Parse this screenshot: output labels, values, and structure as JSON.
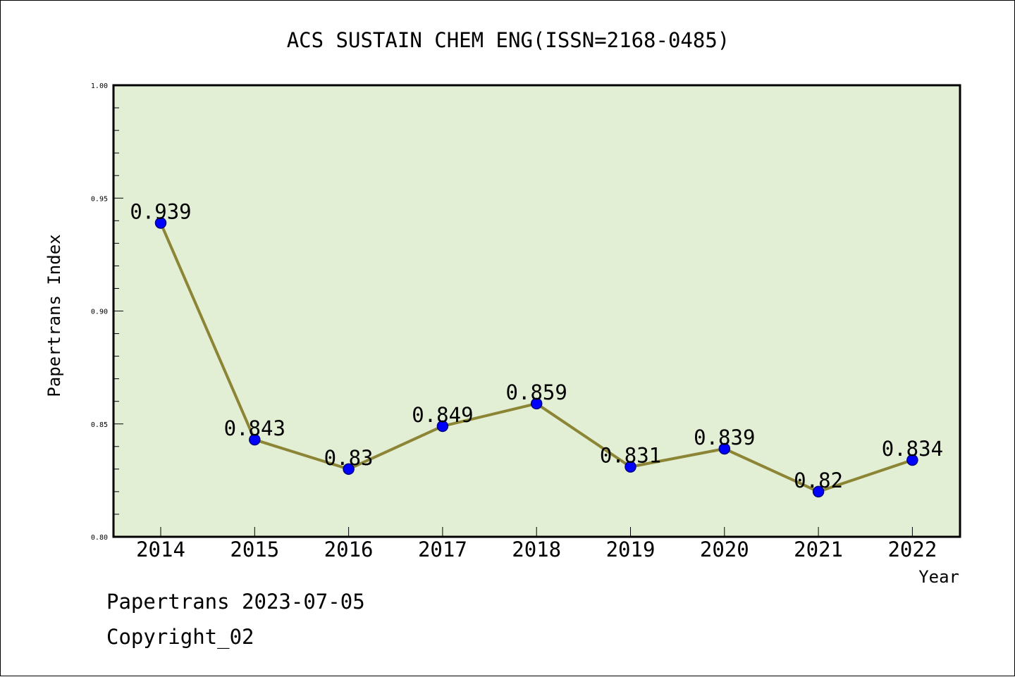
{
  "chart_data": {
    "type": "line",
    "title": "ACS SUSTAIN CHEM ENG(ISSN=2168-0485)",
    "xlabel": "Year",
    "ylabel": "Papertrans Index",
    "categories": [
      "2014",
      "2015",
      "2016",
      "2017",
      "2018",
      "2019",
      "2020",
      "2021",
      "2022"
    ],
    "values": [
      0.939,
      0.843,
      0.83,
      0.849,
      0.859,
      0.831,
      0.839,
      0.82,
      0.834
    ],
    "data_labels": [
      "0.939",
      "0.843",
      "0.83",
      "0.849",
      "0.859",
      "0.831",
      "0.839",
      "0.82",
      "0.834"
    ],
    "ylim": [
      0.8,
      1.0
    ],
    "yticks": [
      "0.80",
      "0.85",
      "0.90",
      "0.95",
      "1.00"
    ],
    "grid": false,
    "legend": "none",
    "colors": {
      "plot_background": "#e2efd4",
      "line": "#8b8535",
      "marker": "#0000ff",
      "marker_edge": "#000080"
    }
  },
  "footer": {
    "source": "Papertrans 2023-07-05",
    "copyright": "Copyright_02"
  }
}
